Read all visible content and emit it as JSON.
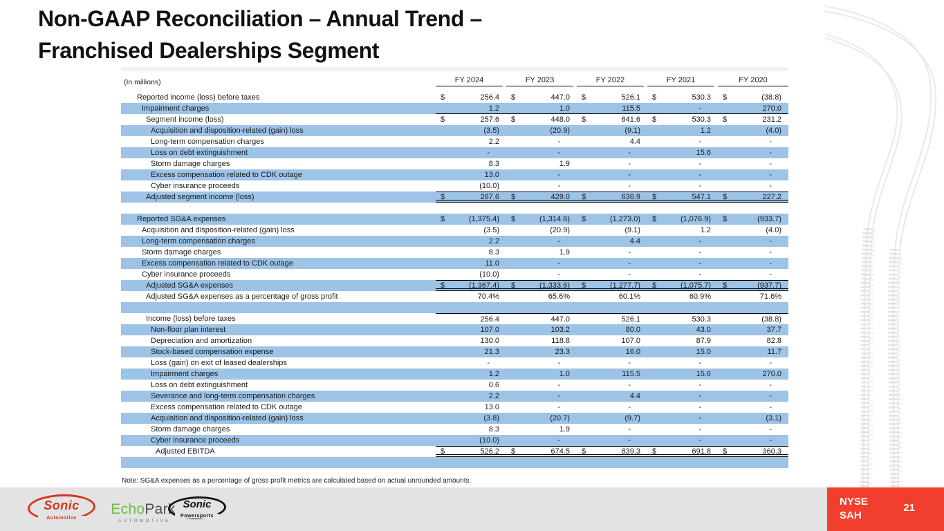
{
  "slide": {
    "title_line1": "Non-GAAP Reconciliation – Annual Trend –",
    "title_line2": "Franchised Dealerships Segment",
    "note": "Note: SG&A expenses as a percentage of gross profit metrics are calculated based on actual unrounded amounts.",
    "page_number": "21"
  },
  "footer": {
    "ticker": {
      "exchange": "NYSE",
      "symbol": "SAH"
    },
    "logos": {
      "sonic_automotive": {
        "name": "Sonic",
        "sub": "Automotive"
      },
      "echopark": {
        "part1": "Echo",
        "part2": "Park",
        "sub": "AUTOMOTIVE"
      },
      "sonic_powersports": {
        "name": "Sonic",
        "sub": "Powersports"
      }
    }
  },
  "colors": {
    "row_highlight": "#9DC3E6",
    "badge_red": "#F23E2C",
    "footer_gray": "#E3E3E3",
    "sonic_red": "#D5351F",
    "echopark_green": "#6CBE45"
  },
  "table": {
    "units_label": "(In millions)",
    "columns": [
      "FY 2024",
      "FY 2023",
      "FY 2022",
      "FY 2021",
      "FY 2020"
    ],
    "rows": [
      {
        "label": "Reported income (loss) before taxes",
        "indent": 0,
        "shade": false,
        "dollar": true,
        "values": [
          "256.4",
          "447.0",
          "526.1",
          "530.3",
          "(38.8)"
        ]
      },
      {
        "label": "Impairment charges",
        "indent": 1,
        "shade": true,
        "border": "bottom",
        "values": [
          "1.2",
          "1.0",
          "115.5",
          "-",
          "270.0"
        ]
      },
      {
        "label": "Segment income (loss)",
        "indent": 2,
        "shade": false,
        "dollar": true,
        "values": [
          "257.6",
          "448.0",
          "641.6",
          "530.3",
          "231.2"
        ]
      },
      {
        "label": "Acquisition and disposition-related (gain) loss",
        "indent": 3,
        "shade": true,
        "values": [
          "(3.5)",
          "(20.9)",
          "(9.1)",
          "1.2",
          "(4.0)"
        ]
      },
      {
        "label": "Long-term compensation charges",
        "indent": 3,
        "shade": false,
        "values": [
          "2.2",
          "-",
          "4.4",
          "-",
          "-"
        ]
      },
      {
        "label": "Loss on debt extinguishment",
        "indent": 3,
        "shade": true,
        "values": [
          "-",
          "-",
          "-",
          "15.6",
          "-"
        ]
      },
      {
        "label": "Storm damage charges",
        "indent": 3,
        "shade": false,
        "values": [
          "8.3",
          "1.9",
          "-",
          "-",
          "-"
        ]
      },
      {
        "label": "Excess compensation related to CDK outage",
        "indent": 3,
        "shade": true,
        "values": [
          "13.0",
          "-",
          "-",
          "-",
          "-"
        ]
      },
      {
        "label": "Cyber insurance proceeds",
        "indent": 3,
        "shade": false,
        "values": [
          "(10.0)",
          "-",
          "-",
          "-",
          "-"
        ]
      },
      {
        "label": "Adjusted segment income (loss)",
        "indent": 2,
        "shade": true,
        "dollar": true,
        "border": "total",
        "values": [
          "267.6",
          "429.0",
          "636.9",
          "547.1",
          "227.2"
        ]
      },
      {
        "spacer": true,
        "shade": false
      },
      {
        "label": "Reported SG&A expenses",
        "indent": 0,
        "shade": true,
        "dollar": true,
        "values": [
          "(1,375.4)",
          "(1,314.6)",
          "(1,273.0)",
          "(1,076.9)",
          "(933.7)"
        ]
      },
      {
        "label": "Acquisition and disposition-related (gain) loss",
        "indent": 1,
        "shade": false,
        "values": [
          "(3.5)",
          "(20.9)",
          "(9.1)",
          "1.2",
          "(4.0)"
        ]
      },
      {
        "label": "Long-term compensation charges",
        "indent": 1,
        "shade": true,
        "values": [
          "2.2",
          "-",
          "4.4",
          "-",
          "-"
        ]
      },
      {
        "label": "Storm damage charges",
        "indent": 1,
        "shade": false,
        "values": [
          "8.3",
          "1.9",
          "-",
          "-",
          "-"
        ]
      },
      {
        "label": "Excess compensation related to CDK outage",
        "indent": 1,
        "shade": true,
        "values": [
          "11.0",
          "-",
          "-",
          "-",
          "-"
        ]
      },
      {
        "label": "Cyber insurance proceeds",
        "indent": 1,
        "shade": false,
        "values": [
          "(10.0)",
          "-",
          "-",
          "-",
          "-"
        ]
      },
      {
        "label": "Adjusted SG&A expenses",
        "indent": 2,
        "shade": true,
        "dollar": true,
        "border": "total",
        "values": [
          "(1,367.4)",
          "(1,333.6)",
          "(1,277.7)",
          "(1,075.7)",
          "(937.7)"
        ]
      },
      {
        "label": "Adjusted SG&A expenses as a percentage of gross profit",
        "indent": 2,
        "shade": false,
        "values": [
          "70.4%",
          "65.6%",
          "60.1%",
          "60.9%",
          "71.6%"
        ]
      },
      {
        "spacer": true,
        "shade": true
      },
      {
        "label": "Income (loss) before taxes",
        "indent": 2,
        "shade": false,
        "border": "top",
        "values": [
          "256.4",
          "447.0",
          "526.1",
          "530.3",
          "(38.8)"
        ]
      },
      {
        "label": "Non-floor plan interest",
        "indent": 3,
        "shade": true,
        "values": [
          "107.0",
          "103.2",
          "80.0",
          "43.0",
          "37.7"
        ]
      },
      {
        "label": "Depreciation and amortization",
        "indent": 3,
        "shade": false,
        "values": [
          "130.0",
          "118.8",
          "107.0",
          "87.9",
          "82.8"
        ]
      },
      {
        "label": "Stock-based compensation expense",
        "indent": 3,
        "shade": true,
        "values": [
          "21.3",
          "23.3",
          "16.0",
          "15.0",
          "11.7"
        ]
      },
      {
        "label": "Loss (gain) on exit of leased dealerships",
        "indent": 3,
        "shade": false,
        "values": [
          "-",
          "-",
          "-",
          "-",
          "-"
        ]
      },
      {
        "label": "Impairment charges",
        "indent": 3,
        "shade": true,
        "values": [
          "1.2",
          "1.0",
          "115.5",
          "15.6",
          "270.0"
        ]
      },
      {
        "label": "Loss on debt extinguishment",
        "indent": 3,
        "shade": false,
        "values": [
          "0.6",
          "-",
          "-",
          "-",
          "-"
        ]
      },
      {
        "label": "Severance and long-term compensation charges",
        "indent": 3,
        "shade": true,
        "values": [
          "2.2",
          "-",
          "4.4",
          "-",
          "-"
        ]
      },
      {
        "label": "Excess compensation related to CDK outage",
        "indent": 3,
        "shade": false,
        "values": [
          "13.0",
          "-",
          "-",
          "-",
          "-"
        ]
      },
      {
        "label": "Acquisition and disposition-related (gain) loss",
        "indent": 3,
        "shade": true,
        "values": [
          "(3.8)",
          "(20.7)",
          "(9.7)",
          "-",
          "(3.1)"
        ]
      },
      {
        "label": "Storm damage charges",
        "indent": 3,
        "shade": false,
        "values": [
          "8.3",
          "1.9",
          "-",
          "-",
          "-"
        ]
      },
      {
        "label": "Cyber insurance proceeds",
        "indent": 3,
        "shade": true,
        "values": [
          "(10.0)",
          "-",
          "-",
          "-",
          "-"
        ]
      },
      {
        "label": "Adjusted EBITDA",
        "indent": 4,
        "shade": false,
        "dollar": true,
        "border": "total",
        "values": [
          "526.2",
          "674.5",
          "839.3",
          "691.8",
          "360.3"
        ]
      },
      {
        "spacer": true,
        "shade": true
      }
    ]
  }
}
